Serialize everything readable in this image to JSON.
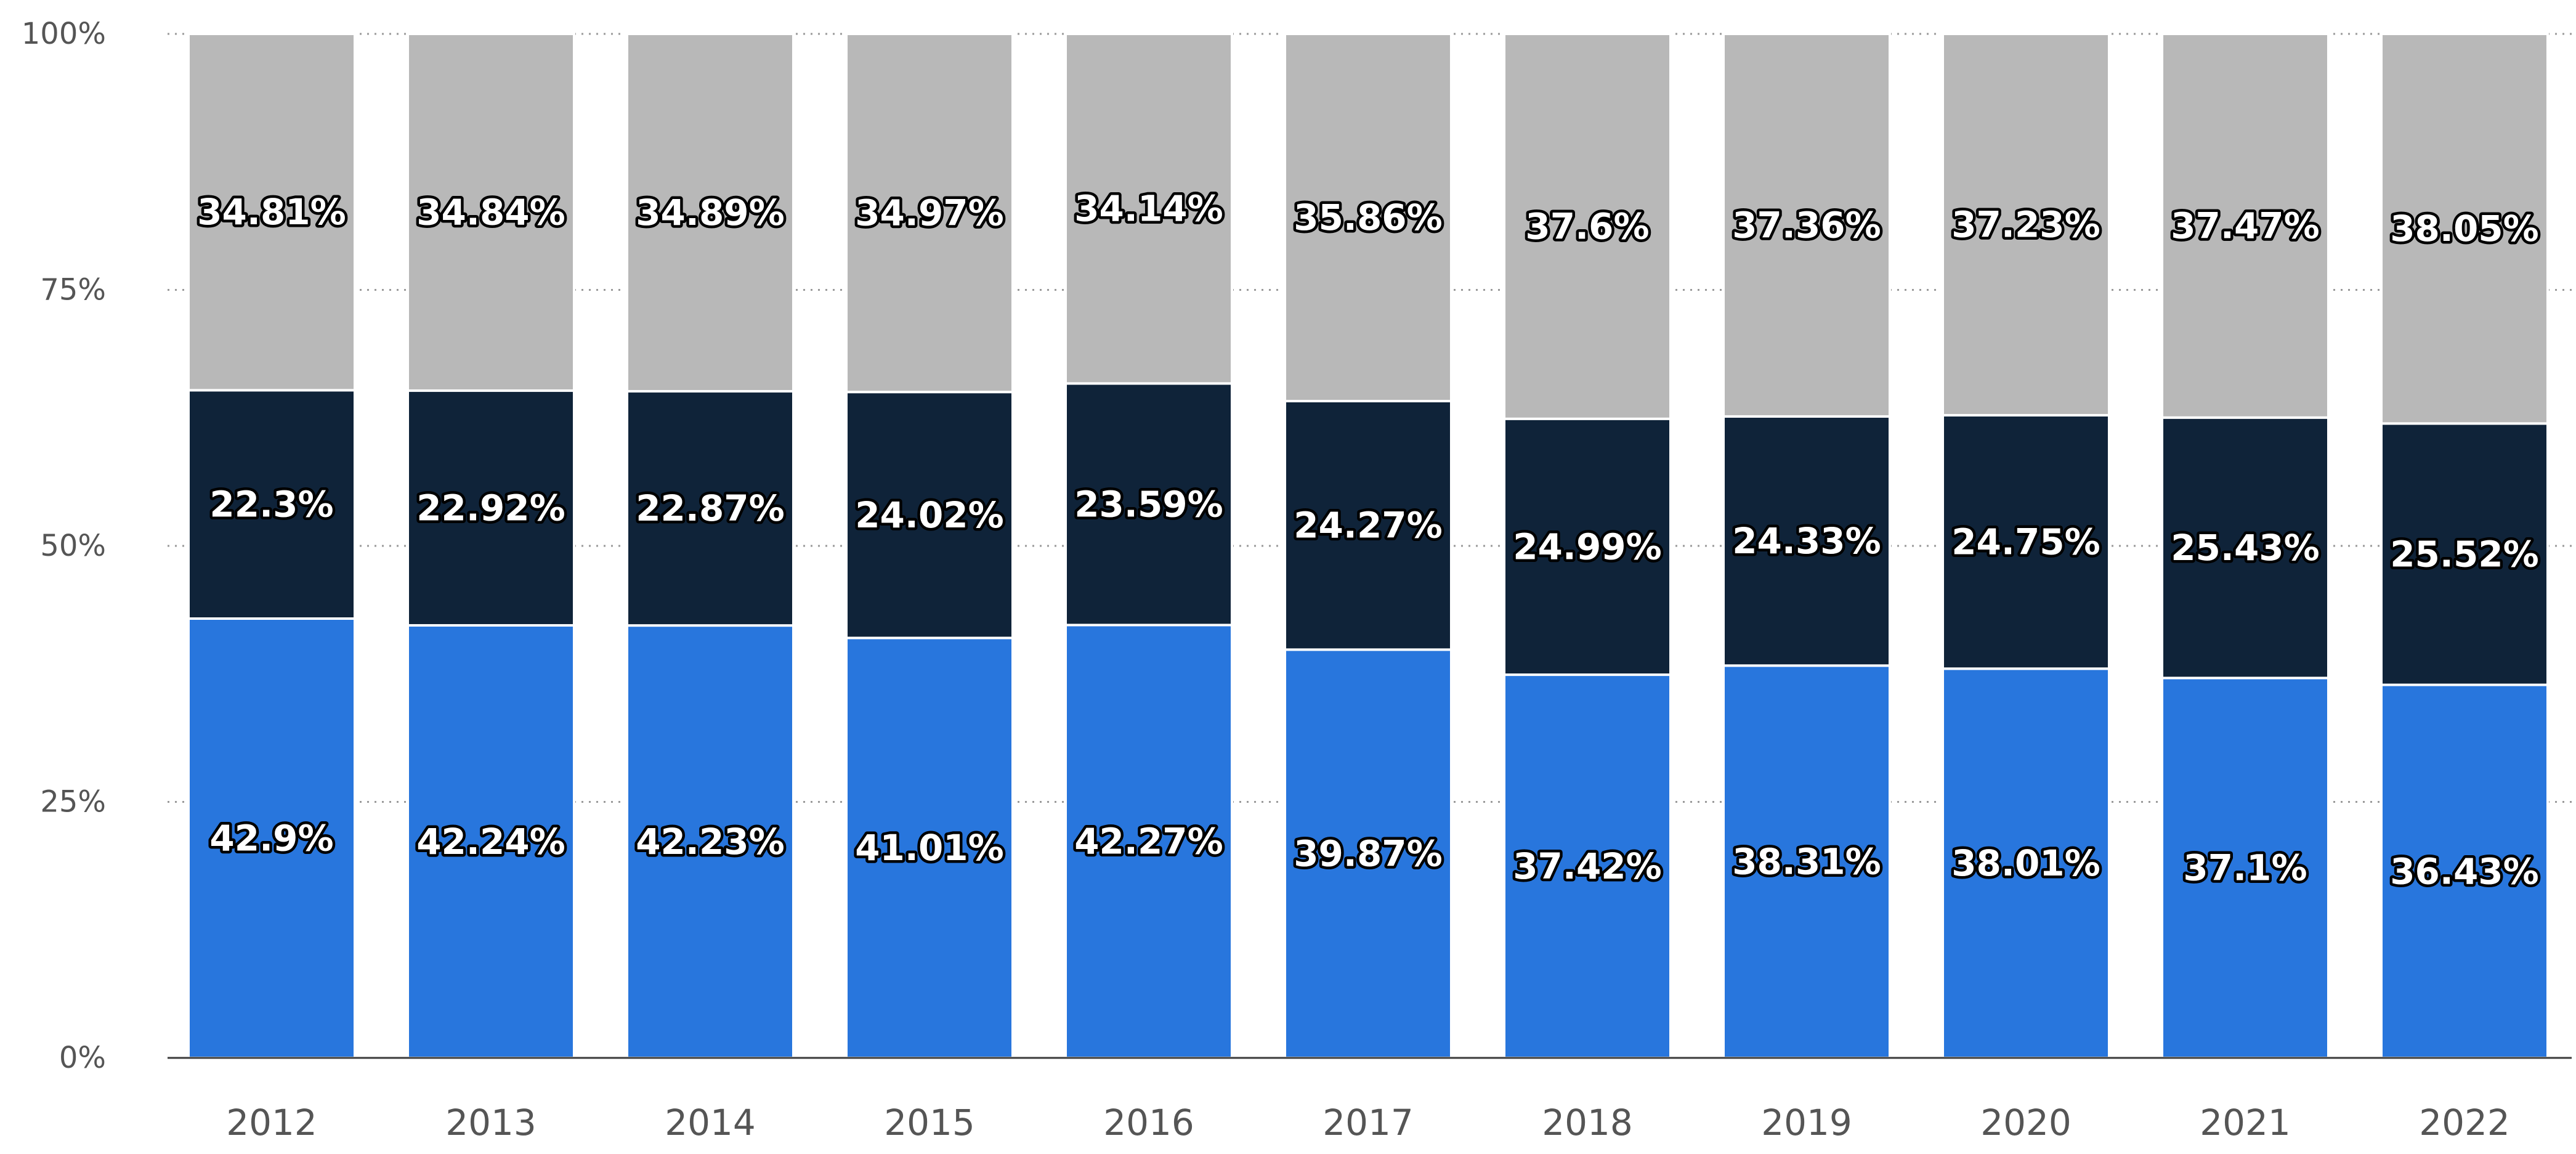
{
  "chart_data": {
    "type": "bar",
    "stacked": true,
    "categories": [
      "2012",
      "2013",
      "2014",
      "2015",
      "2016",
      "2017",
      "2018",
      "2019",
      "2020",
      "2021",
      "2022"
    ],
    "series": [
      {
        "name": "bottom",
        "color": "#2876dd",
        "values": [
          42.9,
          42.24,
          42.23,
          41.01,
          42.27,
          39.87,
          37.42,
          38.31,
          38.01,
          37.1,
          36.43
        ],
        "labels": [
          "42.9%",
          "42.24%",
          "42.23%",
          "41.01%",
          "42.27%",
          "39.87%",
          "37.42%",
          "38.31%",
          "38.01%",
          "37.1%",
          "36.43%"
        ]
      },
      {
        "name": "middle",
        "color": "#0f2339",
        "values": [
          22.3,
          22.92,
          22.87,
          24.02,
          23.59,
          24.27,
          24.99,
          24.33,
          24.75,
          25.43,
          25.52
        ],
        "labels": [
          "22.3%",
          "22.92%",
          "22.87%",
          "24.02%",
          "23.59%",
          "24.27%",
          "24.99%",
          "24.33%",
          "24.75%",
          "25.43%",
          "25.52%"
        ]
      },
      {
        "name": "top",
        "color": "#b8b8b8",
        "values": [
          34.81,
          34.84,
          34.89,
          34.97,
          34.14,
          35.86,
          37.6,
          37.36,
          37.23,
          37.47,
          38.05
        ],
        "labels": [
          "34.81%",
          "34.84%",
          "34.89%",
          "34.97%",
          "34.14%",
          "35.86%",
          "37.6%",
          "37.36%",
          "37.23%",
          "37.47%",
          "38.05%"
        ]
      }
    ],
    "y_ticks": [
      0,
      25,
      50,
      75,
      100
    ],
    "y_tick_labels": [
      "0%",
      "25%",
      "50%",
      "75%",
      "100%"
    ],
    "ylim": [
      0,
      100
    ],
    "title": "",
    "xlabel": "",
    "ylabel": "",
    "grid": true,
    "legend": "none"
  }
}
